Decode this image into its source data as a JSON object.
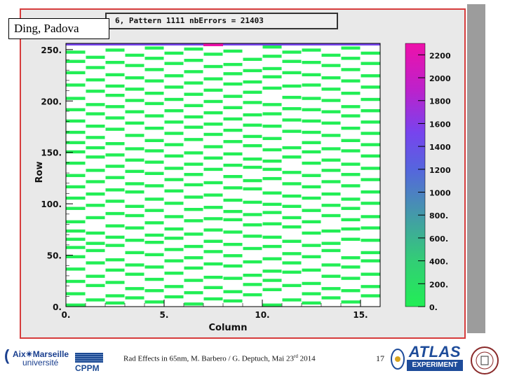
{
  "slide": {
    "label_box": "Ding, Padova",
    "footer_text": "Rad Effects in 65nm, M. Barbero / G. Deptuch, Mai 23",
    "footer_sup": "rd",
    "footer_year": " 2014",
    "page_number": "17"
  },
  "logos": {
    "amu_line1": "Aix✴Marseille",
    "amu_line2": "université",
    "cppm": "CPPM",
    "atlas_line1": "ATLAS",
    "atlas_line2": "EXPERIMENT"
  },
  "colors": {
    "frame_border": "#d63c3c",
    "cell": "#22ee55",
    "palette_low": "#22ee55",
    "palette_mid": "#6655ee",
    "palette_high": "#ee11aa"
  },
  "chart_data": {
    "type": "heatmap",
    "title": "6, Pattern 1111 nbErrors = 21403",
    "xlabel": "Column",
    "ylabel": "Row",
    "xlim": [
      0,
      16
    ],
    "ylim": [
      0,
      256
    ],
    "x_ticks": [
      "0.",
      "5.",
      "10.",
      "15."
    ],
    "y_ticks": [
      "0.",
      "50.",
      "100.",
      "150.",
      "200.",
      "250."
    ],
    "colorbar_ticks": [
      "0.",
      "200.",
      "400.",
      "600.",
      "800.",
      "1000",
      "1200",
      "1400",
      "1600",
      "1800",
      "2000",
      "2200"
    ],
    "colorbar_range": [
      0,
      2300
    ],
    "top_row_value": 2300,
    "grid": false,
    "cells": [
      {
        "col": 0,
        "rows": [
          0,
          11,
          23,
          35,
          47,
          56,
          64,
          72,
          81,
          94,
          104,
          115,
          126,
          138,
          149,
          158,
          168,
          179,
          190,
          201,
          214,
          226,
          237,
          246
        ]
      },
      {
        "col": 1,
        "rows": [
          5,
          19,
          28,
          41,
          53,
          60,
          70,
          85,
          97,
          108,
          120,
          131,
          144,
          153,
          163,
          174,
          186,
          195,
          208,
          219,
          231,
          241
        ]
      },
      {
        "col": 2,
        "rows": [
          2,
          9,
          22,
          34,
          44,
          58,
          66,
          77,
          89,
          101,
          112,
          124,
          135,
          146,
          157,
          171,
          182,
          193,
          204,
          213,
          224,
          236,
          248
        ]
      },
      {
        "col": 3,
        "rows": [
          7,
          16,
          30,
          39,
          51,
          63,
          75,
          87,
          96,
          110,
          118,
          130,
          141,
          152,
          165,
          177,
          188,
          199,
          210,
          221,
          233,
          243
        ]
      },
      {
        "col": 4,
        "rows": [
          3,
          14,
          25,
          37,
          49,
          61,
          68,
          80,
          92,
          103,
          116,
          128,
          139,
          150,
          160,
          172,
          184,
          196,
          206,
          218,
          229,
          240,
          250
        ]
      },
      {
        "col": 5,
        "rows": [
          8,
          18,
          31,
          43,
          54,
          65,
          74,
          86,
          99,
          111,
          122,
          133,
          145,
          156,
          167,
          178,
          189,
          200,
          212,
          223,
          235,
          245
        ]
      },
      {
        "col": 6,
        "rows": [
          1,
          12,
          24,
          36,
          46,
          57,
          69,
          82,
          93,
          105,
          117,
          127,
          137,
          148,
          161,
          173,
          183,
          194,
          205,
          216,
          227,
          238,
          249
        ]
      },
      {
        "col": 7,
        "rows": [
          6,
          17,
          27,
          40,
          52,
          62,
          73,
          84,
          95,
          107,
          119,
          132,
          143,
          154,
          166,
          176,
          187,
          198,
          209,
          220,
          232,
          244
        ]
      },
      {
        "col": 8,
        "rows": [
          4,
          13,
          26,
          38,
          48,
          59,
          71,
          83,
          91,
          102,
          114,
          125,
          136,
          147,
          159,
          170,
          181,
          192,
          203,
          215,
          225,
          234,
          247
        ]
      },
      {
        "col": 9,
        "rows": [
          10,
          20,
          29,
          42,
          55,
          67,
          78,
          88,
          100,
          113,
          121,
          134,
          142,
          155,
          164,
          175,
          185,
          197,
          207,
          217,
          228,
          239
        ]
      },
      {
        "col": 10,
        "rows": [
          0,
          15,
          24,
          33,
          45,
          57,
          66,
          79,
          90,
          98,
          109,
          123,
          132,
          140,
          151,
          162,
          174,
          186,
          195,
          211,
          222,
          230,
          242,
          251
        ]
      },
      {
        "col": 11,
        "rows": [
          5,
          19,
          32,
          41,
          50,
          62,
          76,
          85,
          96,
          106,
          118,
          129,
          144,
          153,
          169,
          180,
          191,
          202,
          213,
          226,
          237,
          246
        ]
      },
      {
        "col": 12,
        "rows": [
          2,
          11,
          21,
          34,
          47,
          58,
          70,
          81,
          92,
          104,
          115,
          126,
          138,
          149,
          158,
          168,
          179,
          190,
          201,
          214,
          224,
          236,
          248
        ]
      },
      {
        "col": 13,
        "rows": [
          7,
          16,
          28,
          39,
          53,
          60,
          72,
          87,
          97,
          108,
          120,
          131,
          141,
          152,
          165,
          177,
          188,
          199,
          210,
          221,
          233,
          243
        ]
      },
      {
        "col": 14,
        "rows": [
          3,
          14,
          26,
          37,
          46,
          64,
          74,
          83,
          94,
          103,
          116,
          127,
          137,
          150,
          160,
          172,
          184,
          193,
          206,
          218,
          229,
          240,
          250
        ]
      },
      {
        "col": 15,
        "rows": [
          9,
          18,
          30,
          43,
          51,
          63,
          75,
          86,
          99,
          110,
          122,
          133,
          145,
          156,
          167,
          178,
          189,
          200,
          212,
          223,
          235,
          245
        ]
      }
    ]
  }
}
